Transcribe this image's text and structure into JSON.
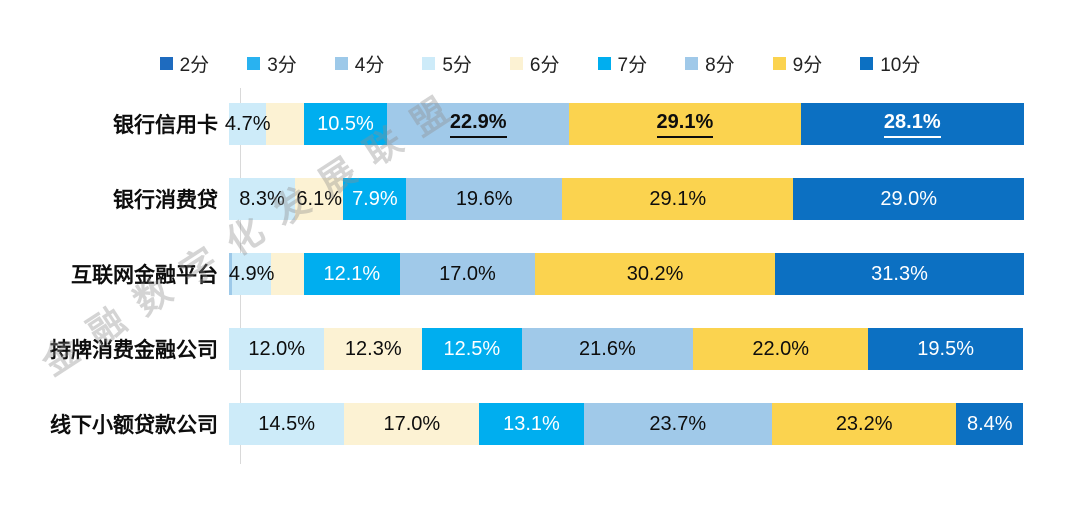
{
  "legend": {
    "items": [
      {
        "label": "2分",
        "color": "#1E6BBF"
      },
      {
        "label": "3分",
        "color": "#29B2F0"
      },
      {
        "label": "4分",
        "color": "#9DC9E9"
      },
      {
        "label": "5分",
        "color": "#CDEBF9"
      },
      {
        "label": "6分",
        "color": "#FCF2D3"
      },
      {
        "label": "7分",
        "color": "#00AEEF"
      },
      {
        "label": "8分",
        "color": "#A0C9E9"
      },
      {
        "label": "9分",
        "color": "#FBD34F"
      },
      {
        "label": "10分",
        "color": "#0C70C2"
      }
    ]
  },
  "chart_data": {
    "type": "bar",
    "stacked": true,
    "orientation": "horizontal",
    "value_unit": "percent",
    "xlim": [
      0,
      100
    ],
    "legend_position": "top",
    "series_names": [
      "2分",
      "3分",
      "4分",
      "5分",
      "6分",
      "7分",
      "8分",
      "9分",
      "10分"
    ],
    "series_colors": {
      "2分": "#1E6BBF",
      "3分": "#29B2F0",
      "4分": "#9DC9E9",
      "5分": "#CDEBF9",
      "6分": "#FCF2D3",
      "7分": "#00AEEF",
      "8分": "#A0C9E9",
      "9分": "#FBD34F",
      "10分": "#0C70C2"
    },
    "light_text_series": [
      "2分",
      "3分",
      "7分",
      "10分"
    ],
    "rows": [
      {
        "category": "银行信用卡",
        "segments": [
          {
            "series": "5分",
            "value": 4.7,
            "label": "4.7%"
          },
          {
            "series": "6分",
            "value": 4.7,
            "label": ""
          },
          {
            "series": "7分",
            "value": 10.5,
            "label": "10.5%"
          },
          {
            "series": "8分",
            "value": 22.9,
            "label": "22.9%",
            "emphasis": true
          },
          {
            "series": "9分",
            "value": 29.1,
            "label": "29.1%",
            "emphasis": true
          },
          {
            "series": "10分",
            "value": 28.1,
            "label": "28.1%",
            "emphasis": true
          }
        ]
      },
      {
        "category": "银行消费贷",
        "segments": [
          {
            "series": "5分",
            "value": 8.3,
            "label": "8.3%"
          },
          {
            "series": "6分",
            "value": 6.1,
            "label": "6.1%"
          },
          {
            "series": "7分",
            "value": 7.9,
            "label": "7.9%"
          },
          {
            "series": "8分",
            "value": 19.6,
            "label": "19.6%"
          },
          {
            "series": "9分",
            "value": 29.1,
            "label": "29.1%"
          },
          {
            "series": "10分",
            "value": 29.0,
            "label": "29.0%"
          }
        ]
      },
      {
        "category": "互联网金融平台",
        "segments": [
          {
            "series": "4分",
            "value": 0.4,
            "label": ""
          },
          {
            "series": "5分",
            "value": 4.9,
            "label": "4.9%"
          },
          {
            "series": "6分",
            "value": 4.1,
            "label": ""
          },
          {
            "series": "7分",
            "value": 12.1,
            "label": "12.1%"
          },
          {
            "series": "8分",
            "value": 17.0,
            "label": "17.0%"
          },
          {
            "series": "9分",
            "value": 30.2,
            "label": "30.2%"
          },
          {
            "series": "10分",
            "value": 31.3,
            "label": "31.3%"
          }
        ]
      },
      {
        "category": "持牌消费金融公司",
        "segments": [
          {
            "series": "5分",
            "value": 12.0,
            "label": "12.0%"
          },
          {
            "series": "6分",
            "value": 12.3,
            "label": "12.3%"
          },
          {
            "series": "7分",
            "value": 12.5,
            "label": "12.5%"
          },
          {
            "series": "8分",
            "value": 21.6,
            "label": "21.6%"
          },
          {
            "series": "9分",
            "value": 22.0,
            "label": "22.0%"
          },
          {
            "series": "10分",
            "value": 19.5,
            "label": "19.5%"
          }
        ]
      },
      {
        "category": "线下小额贷款公司",
        "segments": [
          {
            "series": "5分",
            "value": 14.5,
            "label": "14.5%"
          },
          {
            "series": "6分",
            "value": 17.0,
            "label": "17.0%"
          },
          {
            "series": "7分",
            "value": 13.1,
            "label": "13.1%"
          },
          {
            "series": "8分",
            "value": 23.7,
            "label": "23.7%"
          },
          {
            "series": "9分",
            "value": 23.2,
            "label": "23.2%"
          },
          {
            "series": "10分",
            "value": 8.4,
            "label": "8.4%"
          }
        ]
      }
    ]
  },
  "watermark": {
    "text": "金融数字化发展联盟"
  }
}
